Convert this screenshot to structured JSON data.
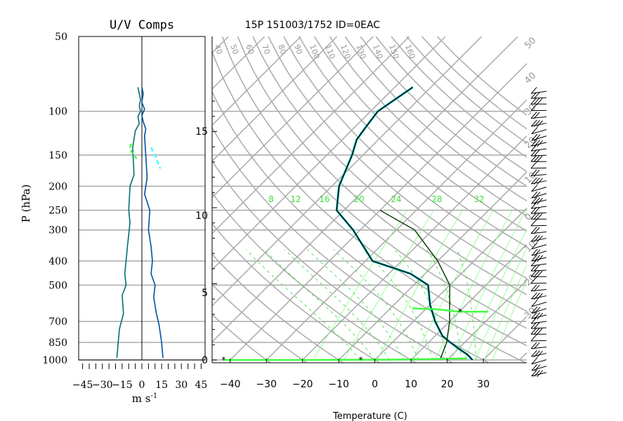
{
  "chart_data": [
    {
      "type": "line",
      "title": "U/V Comps",
      "xlabel": "m s",
      "xlabel_exponent": "-1",
      "ylabel": "P (hPa)",
      "y_scale": "log",
      "xlim": [
        -48,
        48
      ],
      "ylim": [
        1000,
        50
      ],
      "x_ticks": [
        -45,
        -30,
        -15,
        0,
        15,
        30,
        45
      ],
      "x_tick_labels": [
        "−45",
        "−30",
        "−15",
        "0",
        "15",
        "30",
        "45"
      ],
      "y_ticks": [
        1000,
        850,
        700,
        500,
        400,
        300,
        250,
        200,
        150,
        100,
        50
      ],
      "y_tick_labels": [
        "1000",
        "850",
        "700",
        "500",
        "400",
        "300",
        "250",
        "200",
        "150",
        "100",
        "50"
      ],
      "series": [
        {
          "color": "#007070",
          "dashed": false,
          "x": [
            -3,
            -2,
            -1,
            -2,
            -1,
            -3,
            -2,
            -5,
            -7,
            -6,
            -9,
            -10,
            -9,
            -11,
            -12,
            -13,
            -12,
            -15,
            -14,
            -17,
            -18,
            -19
          ],
          "y": [
            80,
            85,
            90,
            95,
            100,
            105,
            112,
            120,
            140,
            180,
            200,
            250,
            280,
            350,
            400,
            450,
            500,
            550,
            650,
            750,
            850,
            980
          ]
        },
        {
          "color": "#0050a0",
          "dashed": false,
          "x": [
            0,
            1,
            0,
            2,
            0,
            1,
            3,
            2,
            4,
            3,
            2,
            6,
            5,
            7,
            8,
            7,
            10,
            9,
            11,
            13,
            15,
            16
          ],
          "y": [
            80,
            85,
            92,
            98,
            104,
            110,
            118,
            125,
            185,
            200,
            215,
            250,
            300,
            350,
            400,
            450,
            500,
            560,
            650,
            720,
            850,
            980
          ]
        },
        {
          "color": "#40ff40",
          "dashed": true,
          "x": [
            -8,
            -9,
            -8,
            -6,
            -4
          ],
          "y": [
            135,
            140,
            145,
            150,
            155
          ]
        },
        {
          "color": "#40ffff",
          "dashed": true,
          "x": [
            7,
            10,
            12,
            14
          ],
          "y": [
            140,
            150,
            160,
            170
          ]
        }
      ]
    },
    {
      "type": "line",
      "title": "15P 151003/1752 ID=0EAC",
      "xlabel": "Temperature (C)",
      "y_scale": "log",
      "skewed": true,
      "xlim": [
        -45,
        42
      ],
      "ylim": [
        1000,
        50
      ],
      "x_ticks": [
        -40,
        -30,
        -20,
        -10,
        0,
        10,
        20,
        30
      ],
      "x_tick_labels": [
        "−40",
        "−30",
        "−20",
        "−10",
        "0",
        "10",
        "20",
        "30"
      ],
      "height_km_ticks": [
        0,
        5,
        10,
        15
      ],
      "height_km_labels": [
        "0",
        "5",
        "10",
        "15"
      ],
      "isobars_hPa": [
        1000,
        850,
        700,
        500,
        400,
        300,
        250,
        200,
        150,
        100
      ],
      "mixing_ratio_labels": [
        "8",
        "12",
        "16",
        "20",
        "24",
        "28",
        "32"
      ],
      "dry_adiabat_labels": [
        "40",
        "50",
        "60",
        "70",
        "80",
        "90",
        "100",
        "110",
        "120",
        "130",
        "140",
        "150",
        "160"
      ],
      "isotherm_labels_right": [
        "50",
        "40",
        "30",
        "20",
        "10",
        "0",
        "10",
        "20",
        "30",
        "40",
        "50"
      ],
      "series": [
        {
          "name": "",
          "color": "#000000",
          "T": [
            27,
            24,
            20,
            16,
            12,
            6,
            0,
            -6,
            -14,
            -28,
            -42,
            -52,
            -58,
            -63,
            -66,
            -67,
            -68,
            -65
          ],
          "p": [
            1000,
            950,
            900,
            850,
            800,
            700,
            600,
            500,
            450,
            400,
            300,
            250,
            200,
            150,
            130,
            115,
            100,
            80
          ]
        },
        {
          "name": "",
          "color": "#003300",
          "T": [
            18,
            15,
            10,
            0,
            -10,
            -25,
            -40
          ],
          "p": [
            1000,
            850,
            700,
            500,
            400,
            300,
            250
          ]
        },
        {
          "name": "",
          "color": "#40ff40",
          "T": [
            -42,
            -20,
            0,
            10,
            18,
            25
          ],
          "p": [
            1000,
            1000,
            998,
            995,
            990,
            985
          ]
        },
        {
          "name": "",
          "color": "#40ff40",
          "T": [
            -4,
            3,
            10,
            18
          ],
          "p": [
            620,
            625,
            640,
            640
          ]
        }
      ]
    }
  ],
  "wind_barbs": {
    "side": "right",
    "count": 45
  }
}
